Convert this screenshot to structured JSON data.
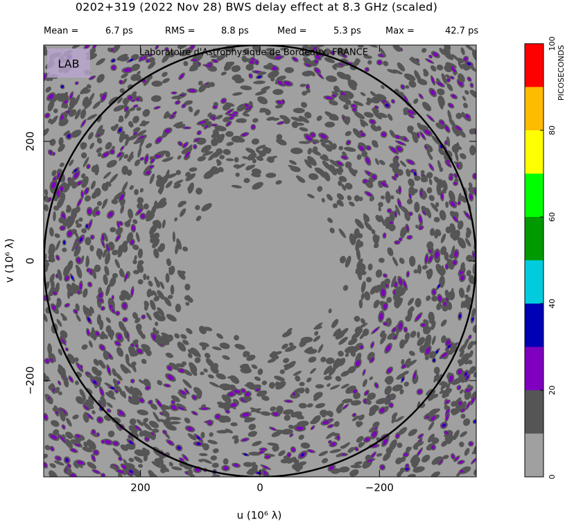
{
  "title": "0202+319  (2022 Nov 28)   BWS delay effect at  8.3 GHz (scaled)",
  "stats": [
    {
      "label": "Mean =",
      "value": "6.7 ps"
    },
    {
      "label": "RMS =",
      "value": "8.8 ps"
    },
    {
      "label": "Med =",
      "value": "5.3 ps"
    },
    {
      "label": "Max =",
      "value": "42.7 ps"
    }
  ],
  "credit": "Laboratoire d'Astrophysique de Bordeaux, FRANCE",
  "logo": "LAB",
  "chart_data": {
    "type": "contour",
    "x_label": "u  (10⁶ λ)",
    "y_label": "v  (10⁶ λ)",
    "xlim": [
      362,
      -362
    ],
    "ylim": [
      -361,
      361
    ],
    "xticks": [
      200,
      0,
      {
        "value": -200,
        "label": "−200"
      }
    ],
    "yticks": [
      {
        "value": -200,
        "label": "−200"
      },
      0,
      200
    ],
    "colorbar": {
      "label": "PICOSECONDS",
      "lim": [
        0,
        100
      ],
      "ticks": [
        0,
        20,
        40,
        60,
        80,
        100
      ],
      "levels": [
        0,
        10,
        20,
        30,
        40,
        50,
        60,
        70,
        80,
        90,
        100
      ],
      "colors": [
        "#a0a0a0",
        "#555555",
        "#7f00bf",
        "#0000b4",
        "#00ccdd",
        "#009900",
        "#00ff00",
        "#ffff00",
        "#ffbb00",
        "#ff0000"
      ]
    }
  }
}
